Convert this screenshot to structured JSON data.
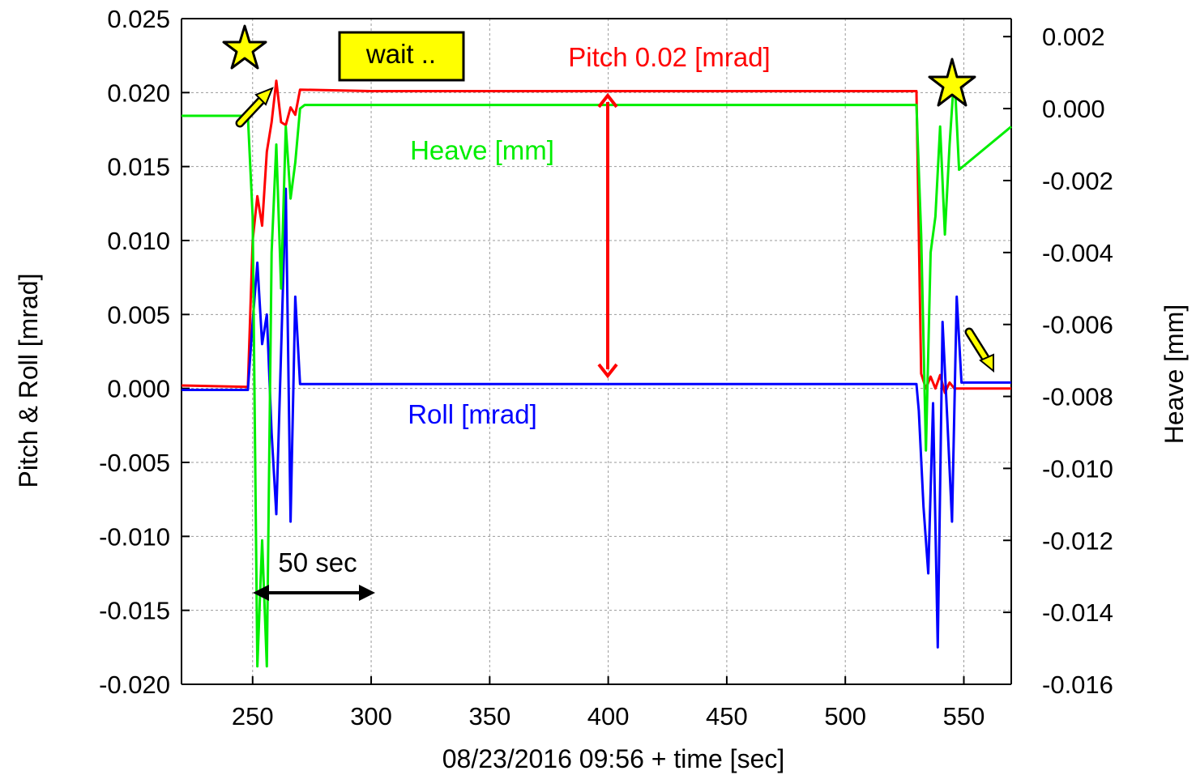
{
  "chart_data": {
    "type": "line",
    "xlabel": "08/23/2016 09:56 + time [sec]",
    "ylabel_left": "Pitch & Roll [mrad]",
    "ylabel_right": "Heave [mm]",
    "xlim": [
      220,
      570
    ],
    "ylim_left": [
      -0.02,
      0.025
    ],
    "ylim_right": [
      -0.016,
      0.0025
    ],
    "grid": true,
    "x_ticks": [
      "250",
      "300",
      "350",
      "400",
      "450",
      "500",
      "550"
    ],
    "y_left_ticks": [
      "0.025",
      "0.020",
      "0.015",
      "0.010",
      "0.005",
      "0.000",
      "-0.005",
      "-0.010",
      "-0.015",
      "-0.020"
    ],
    "y_right_ticks": [
      "0.002",
      "0.000",
      "-0.002",
      "-0.004",
      "-0.006",
      "-0.008",
      "-0.010",
      "-0.012",
      "-0.014",
      "-0.016"
    ],
    "colors": {
      "pitch": "#ff0000",
      "roll": "#0000ff",
      "heave": "#00ee00",
      "highlight": "#ffff00"
    },
    "series": [
      {
        "name": "Pitch 0.02 [mrad]",
        "axis": "left",
        "color": "#ff0000",
        "x": [
          220,
          248,
          250,
          252,
          254,
          256,
          258,
          260,
          262,
          264,
          266,
          268,
          270,
          300,
          400,
          500,
          530,
          532,
          534,
          536,
          538,
          540,
          542,
          544,
          546,
          548,
          570
        ],
        "y": [
          0.0002,
          0.0001,
          0.01,
          0.013,
          0.011,
          0.016,
          0.018,
          0.0208,
          0.018,
          0.0178,
          0.019,
          0.0185,
          0.0202,
          0.0201,
          0.0201,
          0.0201,
          0.0201,
          0.001,
          0.0,
          0.0008,
          0.0,
          0.0009,
          -0.0003,
          0.0004,
          0.0,
          0.0,
          0.0
        ]
      },
      {
        "name": "Roll [mrad]",
        "axis": "left",
        "color": "#0000ff",
        "x": [
          220,
          248,
          250,
          252,
          254,
          256,
          258,
          260,
          262,
          264,
          266,
          268,
          270,
          272,
          400,
          530,
          531,
          533,
          535,
          537,
          539,
          541,
          543,
          545,
          547,
          549,
          570
        ],
        "y": [
          -0.0001,
          -0.0001,
          0.0045,
          0.0085,
          0.003,
          0.005,
          -0.003,
          -0.0085,
          0.0025,
          0.0135,
          -0.009,
          0.0062,
          0.0003,
          0.0003,
          0.0003,
          0.0003,
          -0.0015,
          -0.008,
          -0.0125,
          -0.001,
          -0.0175,
          0.0045,
          -0.002,
          -0.009,
          0.0062,
          0.0004,
          0.0004
        ]
      },
      {
        "name": "Heave [mm]",
        "axis": "right",
        "color": "#00ee00",
        "x": [
          220,
          248,
          250,
          252,
          254,
          256,
          258,
          260,
          262,
          264,
          266,
          268,
          270,
          272,
          300,
          400,
          500,
          530,
          532,
          534,
          536,
          538,
          540,
          542,
          544,
          546,
          548,
          570
        ],
        "y": [
          -0.0002,
          -0.0002,
          -0.003,
          -0.0155,
          -0.012,
          -0.0155,
          -0.004,
          -0.001,
          -0.005,
          -0.0005,
          -0.0025,
          -0.0015,
          0.0,
          0.0001,
          0.0001,
          0.0001,
          0.0001,
          0.0001,
          -0.0035,
          -0.0095,
          -0.004,
          -0.003,
          -0.0005,
          -0.0035,
          -0.001,
          0.001,
          -0.0017,
          -0.0005
        ]
      }
    ],
    "annotations": {
      "wait_label": "wait ..",
      "pitch_label": "Pitch 0.02 [mrad]",
      "heave_label": "Heave [mm]",
      "roll_label": "Roll [mrad]",
      "interval_label": "50 sec"
    }
  }
}
